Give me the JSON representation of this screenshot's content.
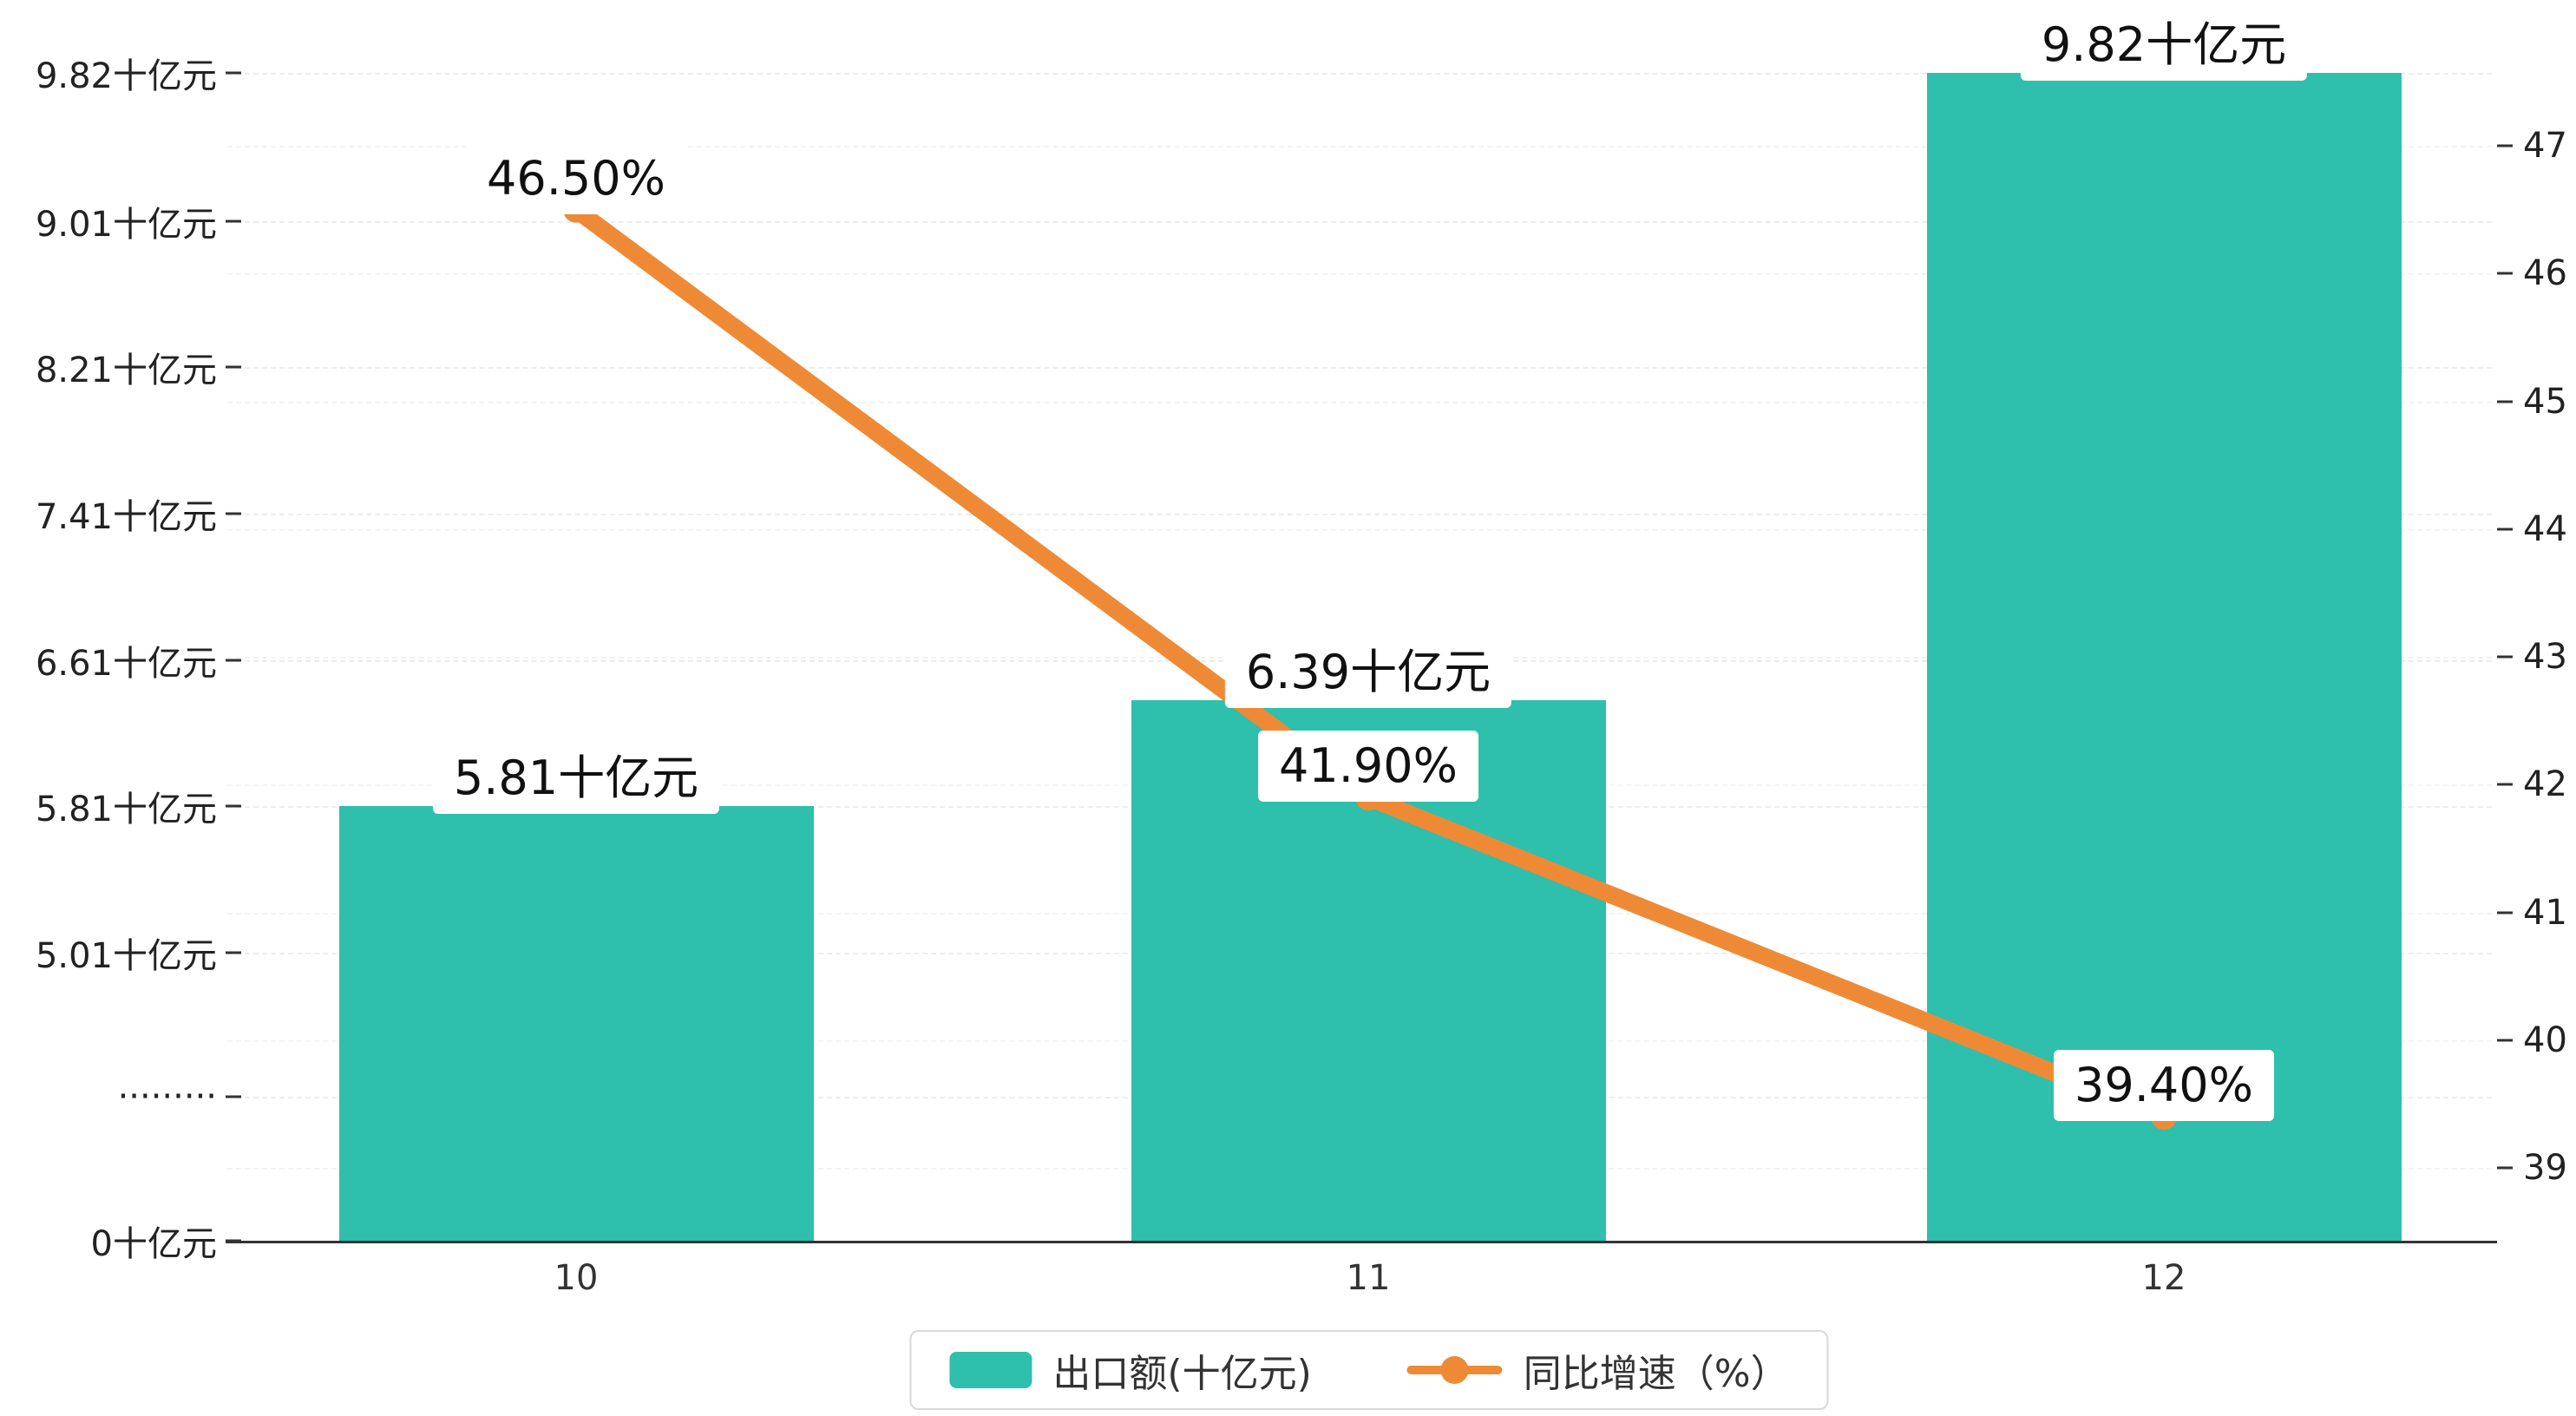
{
  "chart_data": {
    "type": "combo",
    "categories": [
      "10",
      "11",
      "12"
    ],
    "series": [
      {
        "name": "出口额(十亿元)",
        "type": "bar",
        "axis": "left",
        "values": [
          5.81,
          6.39,
          9.82
        ],
        "labels": [
          "5.81十亿元",
          "6.39十亿元",
          "9.82十亿元"
        ],
        "color": "#2ebfad"
      },
      {
        "name": "同比增速（%）",
        "type": "line",
        "axis": "right",
        "values": [
          46.5,
          41.9,
          39.4
        ],
        "labels": [
          "46.50%",
          "41.90%",
          "39.40%"
        ],
        "color": "#ee8a36"
      }
    ],
    "left_axis": {
      "unit": "十亿元",
      "broken": true,
      "ticks": [
        {
          "label": "9.82十亿元",
          "value": 9.82
        },
        {
          "label": "9.01十亿元",
          "value": 9.01
        },
        {
          "label": "8.21十亿元",
          "value": 8.21
        },
        {
          "label": "7.41十亿元",
          "value": 7.41
        },
        {
          "label": "6.61十亿元",
          "value": 6.61
        },
        {
          "label": "5.81十亿元",
          "value": 5.81
        },
        {
          "label": "5.01十亿元",
          "value": 5.01
        },
        {
          "label": "·········",
          "value": null
        },
        {
          "label": "0十亿元",
          "value": 0
        }
      ]
    },
    "right_axis": {
      "min": 39,
      "max": 47,
      "ticks": [
        47,
        46,
        45,
        44,
        43,
        42,
        41,
        40,
        39
      ]
    },
    "grid": true,
    "legend_position": "bottom"
  }
}
